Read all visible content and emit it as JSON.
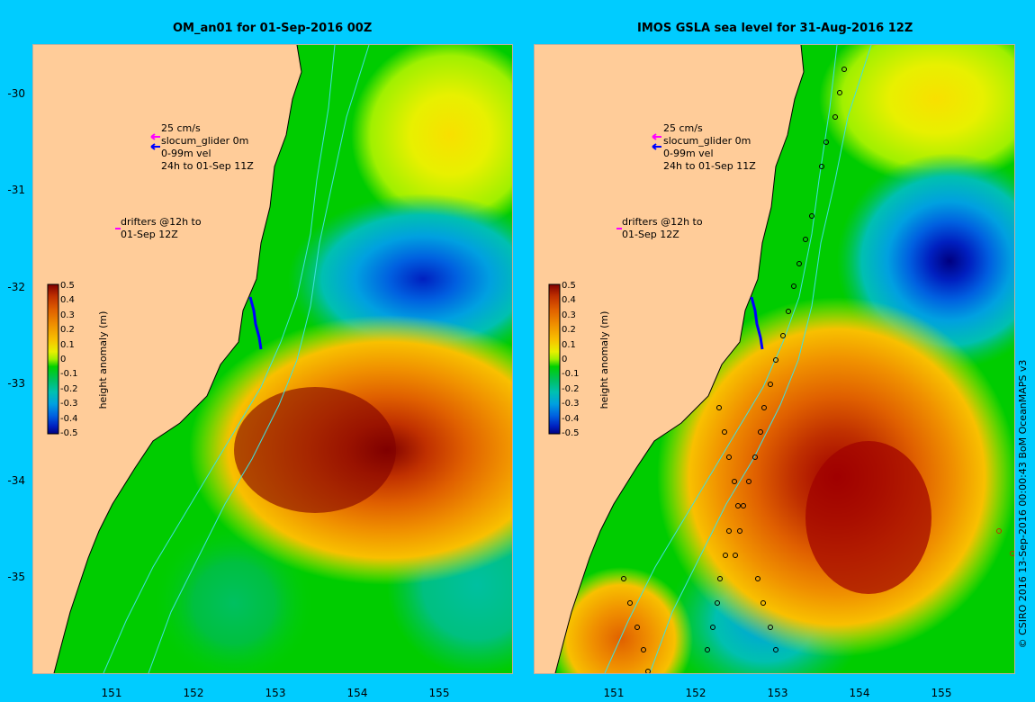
{
  "left_panel": {
    "title": "OM_an01 for 01-Sep-2016 00Z",
    "legend": {
      "vector_scale": "25 cm/s",
      "glider_label": "slocum_glider 0m",
      "vel_label": "0-99m vel",
      "time_label": "24h to 01-Sep 11Z",
      "drifters_line1": "drifters @12h to",
      "drifters_line2": "01-Sep 12Z"
    }
  },
  "right_panel": {
    "title": "IMOS GSLA sea level  for 31-Aug-2016 12Z",
    "legend": {
      "vector_scale": "25 cm/s",
      "glider_label": "slocum_glider 0m",
      "vel_label": "0-99m vel",
      "time_label": "24h to 01-Sep 11Z",
      "drifters_line1": "drifters @12h to",
      "drifters_line2": "01-Sep 12Z"
    }
  },
  "colorbar": {
    "label": "height anomaly (m)",
    "ticks": [
      "0.5",
      "0.4",
      "0.3",
      "0.2",
      "0.1",
      "0",
      "-0.1",
      "-0.2",
      "-0.3",
      "-0.4",
      "-0.5"
    ],
    "colors": [
      "#800000",
      "#c03000",
      "#e06000",
      "#f09000",
      "#f8c000",
      "#e8f000",
      "#a0f000",
      "#00d000",
      "#00c060",
      "#00c0b0",
      "#00a0e0",
      "#0060e0",
      "#0020c0",
      "#000080"
    ]
  },
  "axes": {
    "lat_ticks": [
      "-30",
      "-31",
      "-32",
      "-33",
      "-34",
      "-35"
    ],
    "lon_ticks": [
      "151",
      "152",
      "153",
      "154",
      "155"
    ]
  },
  "credit": "© CSIRO 2016  13-Sep-2016 00:00:43 BoM OceanMAPS v3",
  "colors": {
    "background": "#00ccff",
    "land": "#ffcc99",
    "green": "#00cc00",
    "glider_arrow": "#0000ff",
    "drifter_arrow": "#ff00ff"
  }
}
